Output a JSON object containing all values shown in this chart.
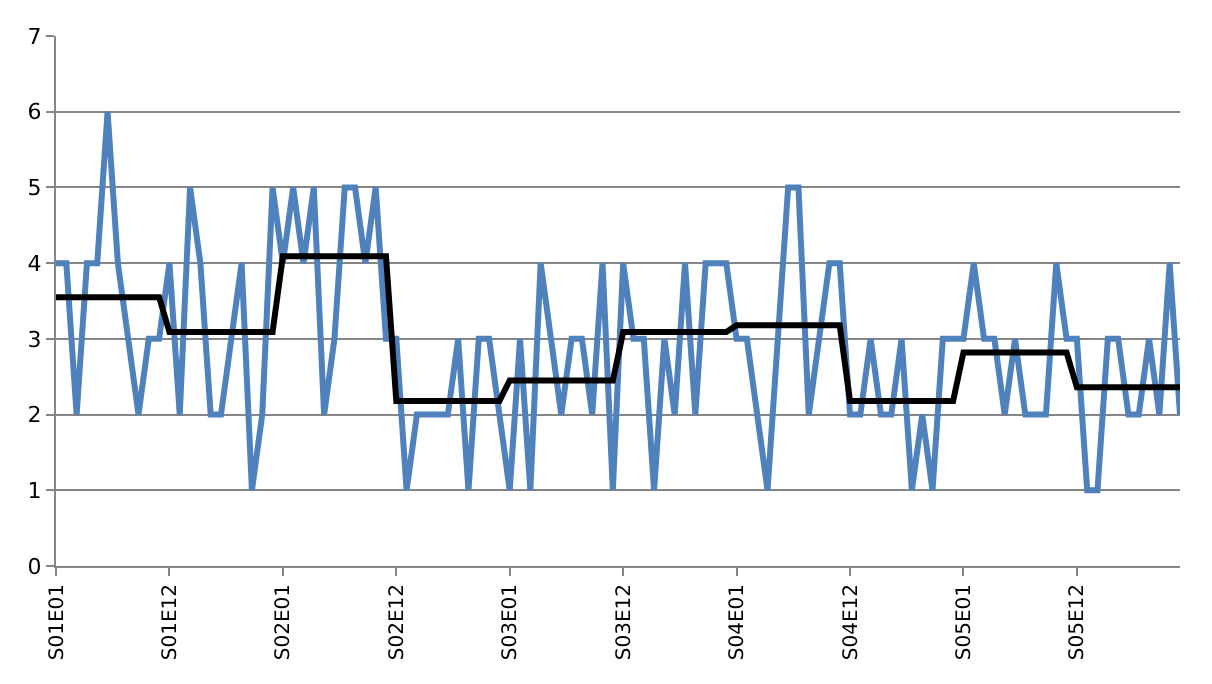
{
  "chart_data": {
    "type": "line",
    "categories": [
      "S01E01",
      null,
      null,
      null,
      null,
      null,
      null,
      null,
      null,
      null,
      null,
      "S01E12",
      null,
      null,
      null,
      null,
      null,
      null,
      null,
      null,
      null,
      null,
      "S02E01",
      null,
      null,
      null,
      null,
      null,
      null,
      null,
      null,
      null,
      null,
      "S02E12",
      null,
      null,
      null,
      null,
      null,
      null,
      null,
      null,
      null,
      null,
      "S03E01",
      null,
      null,
      null,
      null,
      null,
      null,
      null,
      null,
      null,
      null,
      "S03E12",
      null,
      null,
      null,
      null,
      null,
      null,
      null,
      null,
      null,
      null,
      "S04E01",
      null,
      null,
      null,
      null,
      null,
      null,
      null,
      null,
      null,
      null,
      "S04E12",
      null,
      null,
      null,
      null,
      null,
      null,
      null,
      null,
      null,
      null,
      "S05E01",
      null,
      null,
      null,
      null,
      null,
      null,
      null,
      null,
      null,
      null,
      "S05E12",
      null,
      null,
      null,
      null,
      null,
      null,
      null,
      null,
      null,
      null
    ],
    "series": [
      {
        "color": "#4f81bd",
        "values": [
          4,
          4,
          2,
          4,
          4,
          6,
          4,
          3,
          2,
          3,
          3,
          4,
          2,
          5,
          4,
          2,
          2,
          3,
          4,
          1,
          2,
          5,
          4,
          5,
          4,
          5,
          2,
          3,
          5,
          5,
          4,
          5,
          3,
          3,
          1,
          2,
          2,
          2,
          2,
          3,
          1,
          3,
          3,
          2,
          1,
          3,
          1,
          4,
          3,
          2,
          3,
          3,
          2,
          4,
          1,
          4,
          3,
          3,
          1,
          3,
          2,
          4,
          2,
          4,
          4,
          4,
          3,
          3,
          2,
          1,
          3,
          5,
          5,
          2,
          3,
          4,
          4,
          2,
          2,
          3,
          2,
          2,
          3,
          1,
          2,
          1,
          3,
          3,
          3,
          4,
          3,
          3,
          2,
          3,
          2,
          2,
          2,
          4,
          3,
          3,
          1,
          1,
          3,
          3,
          2,
          2,
          3,
          2,
          4,
          2
        ]
      },
      {
        "color": "#000000",
        "values": [
          3.55,
          3.55,
          3.55,
          3.55,
          3.55,
          3.55,
          3.55,
          3.55,
          3.55,
          3.55,
          3.55,
          3.09,
          3.09,
          3.09,
          3.09,
          3.09,
          3.09,
          3.09,
          3.09,
          3.09,
          3.09,
          3.09,
          4.09,
          4.09,
          4.09,
          4.09,
          4.09,
          4.09,
          4.09,
          4.09,
          4.09,
          4.09,
          4.09,
          2.18,
          2.18,
          2.18,
          2.18,
          2.18,
          2.18,
          2.18,
          2.18,
          2.18,
          2.18,
          2.18,
          2.45,
          2.45,
          2.45,
          2.45,
          2.45,
          2.45,
          2.45,
          2.45,
          2.45,
          2.45,
          2.45,
          3.09,
          3.09,
          3.09,
          3.09,
          3.09,
          3.09,
          3.09,
          3.09,
          3.09,
          3.09,
          3.09,
          3.18,
          3.18,
          3.18,
          3.18,
          3.18,
          3.18,
          3.18,
          3.18,
          3.18,
          3.18,
          3.18,
          2.18,
          2.18,
          2.18,
          2.18,
          2.18,
          2.18,
          2.18,
          2.18,
          2.18,
          2.18,
          2.18,
          2.82,
          2.82,
          2.82,
          2.82,
          2.82,
          2.82,
          2.82,
          2.82,
          2.82,
          2.82,
          2.82,
          2.36,
          2.36,
          2.36,
          2.36,
          2.36,
          2.36,
          2.36,
          2.36,
          2.36,
          2.36,
          2.36
        ]
      }
    ],
    "ylim": [
      0,
      7
    ],
    "yticks": [
      0,
      1,
      2,
      3,
      4,
      5,
      6,
      7
    ],
    "grid": "y",
    "marker": "none",
    "line_style": "solid"
  }
}
